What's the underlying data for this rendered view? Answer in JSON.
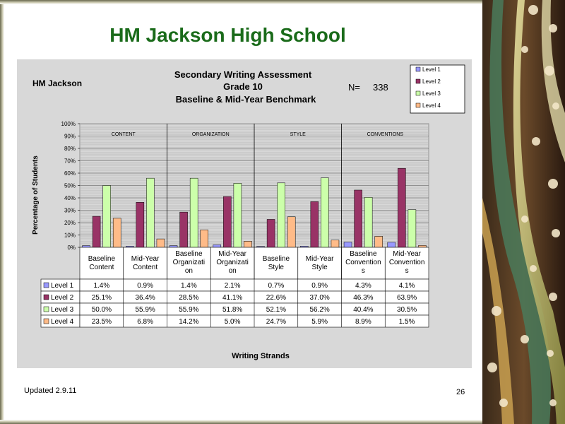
{
  "slide": {
    "title": "HM Jackson High School",
    "footer_left": "Updated  2.9.11",
    "page_number": "26"
  },
  "chart_data": {
    "type": "bar",
    "school_label": "HM Jackson",
    "title_lines": [
      "Secondary Writing Assessment",
      "Grade 10",
      "Baseline & Mid-Year Benchmark"
    ],
    "n_label": "N=",
    "n_value": "338",
    "ylabel": "Percentage of Students",
    "xlabel": "Writing Strands",
    "ylim": [
      0,
      100
    ],
    "yticks": [
      "0%",
      "10%",
      "20%",
      "30%",
      "40%",
      "50%",
      "60%",
      "70%",
      "80%",
      "90%",
      "100%"
    ],
    "grid": true,
    "legend_position": "top-right",
    "section_labels": [
      "CONTENT",
      "ORGANIZATION",
      "STYLE",
      "CONVENTIONS"
    ],
    "categories": [
      [
        "Baseline",
        "Content"
      ],
      [
        "Mid-Year",
        "Content"
      ],
      [
        "Baseline",
        "Organizati",
        "on"
      ],
      [
        "Mid-Year",
        "Organizati",
        "on"
      ],
      [
        "Baseline",
        "Style"
      ],
      [
        "Mid-Year",
        "Style"
      ],
      [
        "Baseline",
        "Convention",
        "s"
      ],
      [
        "Mid-Year",
        "Convention",
        "s"
      ]
    ],
    "series": [
      {
        "name": "Level 1",
        "color": "#9999ff",
        "values": [
          1.4,
          0.9,
          1.4,
          2.1,
          0.7,
          0.9,
          4.3,
          4.1
        ],
        "labels": [
          "1.4%",
          "0.9%",
          "1.4%",
          "2.1%",
          "0.7%",
          "0.9%",
          "4.3%",
          "4.1%"
        ]
      },
      {
        "name": "Level 2",
        "color": "#993366",
        "values": [
          25.1,
          36.4,
          28.5,
          41.1,
          22.6,
          37.0,
          46.3,
          63.9
        ],
        "labels": [
          "25.1%",
          "36.4%",
          "28.5%",
          "41.1%",
          "22.6%",
          "37.0%",
          "46.3%",
          "63.9%"
        ]
      },
      {
        "name": "Level 3",
        "color": "#ccffaa",
        "values": [
          50.0,
          55.9,
          55.9,
          51.8,
          52.1,
          56.2,
          40.4,
          30.5
        ],
        "labels": [
          "50.0%",
          "55.9%",
          "55.9%",
          "51.8%",
          "52.1%",
          "56.2%",
          "40.4%",
          "30.5%"
        ]
      },
      {
        "name": "Level 4",
        "color": "#ffbb88",
        "values": [
          23.5,
          6.8,
          14.2,
          5.0,
          24.7,
          5.9,
          8.9,
          1.5
        ],
        "labels": [
          "23.5%",
          "6.8%",
          "14.2%",
          "5.0%",
          "24.7%",
          "5.9%",
          "8.9%",
          "1.5%"
        ]
      }
    ]
  }
}
